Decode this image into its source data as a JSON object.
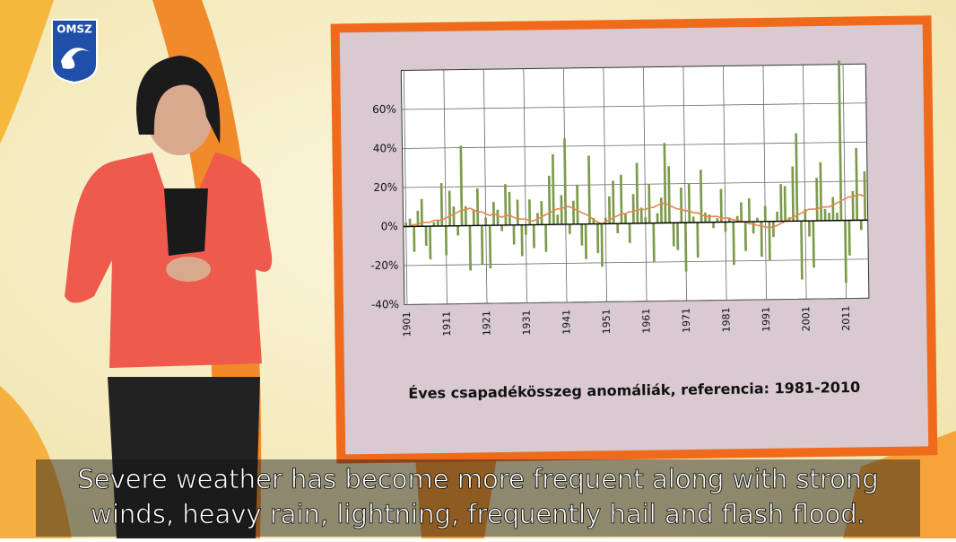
{
  "logo": {
    "text": "OMSZ"
  },
  "chart_data": {
    "type": "bar",
    "title": "Éves csapadékösszeg anomáliák, referencia: 1981-2010",
    "x": [
      1901,
      1902,
      1903,
      1904,
      1905,
      1906,
      1907,
      1908,
      1909,
      1910,
      1911,
      1912,
      1913,
      1914,
      1915,
      1916,
      1917,
      1918,
      1919,
      1920,
      1921,
      1922,
      1923,
      1924,
      1925,
      1926,
      1927,
      1928,
      1929,
      1930,
      1931,
      1932,
      1933,
      1934,
      1935,
      1936,
      1937,
      1938,
      1939,
      1940,
      1941,
      1942,
      1943,
      1944,
      1945,
      1946,
      1947,
      1948,
      1949,
      1950,
      1951,
      1952,
      1953,
      1954,
      1955,
      1956,
      1957,
      1958,
      1959,
      1960,
      1961,
      1962,
      1963,
      1964,
      1965,
      1966,
      1967,
      1968,
      1969,
      1970,
      1971,
      1972,
      1973,
      1974,
      1975,
      1976,
      1977,
      1978,
      1979,
      1980,
      1981,
      1982,
      1983,
      1984,
      1985,
      1986,
      1987,
      1988,
      1989,
      1990,
      1991,
      1992,
      1993,
      1994,
      1995,
      1996,
      1997,
      1998,
      1999,
      2000,
      2001,
      2002,
      2003,
      2004,
      2005,
      2006,
      2007,
      2008,
      2009,
      2010,
      2011,
      2012,
      2013,
      2014,
      2015,
      2016
    ],
    "series": [
      {
        "type": "bar",
        "color": "#7d9a4c",
        "values": [
          2,
          4,
          -13,
          8,
          14,
          -10,
          -17,
          2,
          3,
          22,
          -15,
          18,
          10,
          -5,
          41,
          10,
          -23,
          8,
          19,
          -20,
          4,
          -22,
          12,
          8,
          -3,
          21,
          17,
          -10,
          13,
          -16,
          -5,
          13,
          -12,
          6,
          12,
          -14,
          25,
          36,
          5,
          15,
          44,
          -5,
          12,
          20,
          -11,
          -18,
          35,
          3,
          -15,
          -22,
          3,
          14,
          22,
          -5,
          25,
          5,
          -10,
          15,
          31,
          8,
          3,
          20,
          -20,
          5,
          13,
          41,
          29,
          -12,
          -14,
          18,
          -25,
          20,
          3,
          -18,
          27,
          5,
          4,
          -3,
          2,
          17,
          -5,
          2,
          -22,
          3,
          10,
          -15,
          12,
          -6,
          2,
          -18,
          8,
          -20,
          -8,
          5,
          19,
          18,
          2,
          28,
          45,
          -30,
          6,
          -8,
          -24,
          22,
          30,
          6,
          4,
          12,
          4,
          82,
          -32,
          -18,
          15,
          37,
          -5,
          25
        ]
      },
      {
        "type": "line",
        "color": "#e8864e",
        "values": [
          0,
          0,
          1,
          1,
          2,
          2,
          2,
          3,
          3,
          3,
          4,
          5,
          6,
          7,
          8,
          8,
          9,
          8,
          7,
          7,
          6,
          5,
          6,
          5,
          4,
          5,
          5,
          4,
          3,
          3,
          3,
          2,
          2,
          3,
          4,
          5,
          6,
          7,
          8,
          8,
          9,
          9,
          8,
          7,
          6,
          5,
          4,
          2,
          1,
          0,
          1,
          2,
          3,
          4,
          5,
          5,
          6,
          6,
          7,
          7,
          7,
          8,
          8,
          9,
          10,
          10,
          9,
          8,
          7,
          7,
          6,
          6,
          5,
          5,
          4,
          3,
          3,
          3,
          3,
          2,
          2,
          2,
          1,
          1,
          0,
          0,
          -1,
          -1,
          -2,
          -2,
          -3,
          -3,
          -3,
          -2,
          -1,
          0,
          1,
          2,
          3,
          4,
          5,
          6,
          6,
          6,
          7,
          7,
          7,
          8,
          9,
          10,
          11,
          12,
          12,
          13,
          13,
          12
        ]
      }
    ],
    "xlim": [
      1901,
      2016
    ],
    "xticks": [
      1901,
      1911,
      1921,
      1931,
      1941,
      1951,
      1961,
      1971,
      1981,
      1991,
      2001,
      2011
    ],
    "ylim": [
      -40,
      80
    ],
    "yticks": [
      {
        "value": -40,
        "label": "-40%"
      },
      {
        "value": -20,
        "label": "-20%"
      },
      {
        "value": 0,
        "label": "0%"
      },
      {
        "value": 20,
        "label": "20%"
      },
      {
        "value": 40,
        "label": "40%"
      },
      {
        "value": 60,
        "label": "60%"
      }
    ],
    "grid": true
  },
  "subtitle": {
    "lines": [
      "Severe weather has become more frequent along with strong",
      "winds, heavy rain, lightning, frequently hail and flash flood."
    ]
  }
}
